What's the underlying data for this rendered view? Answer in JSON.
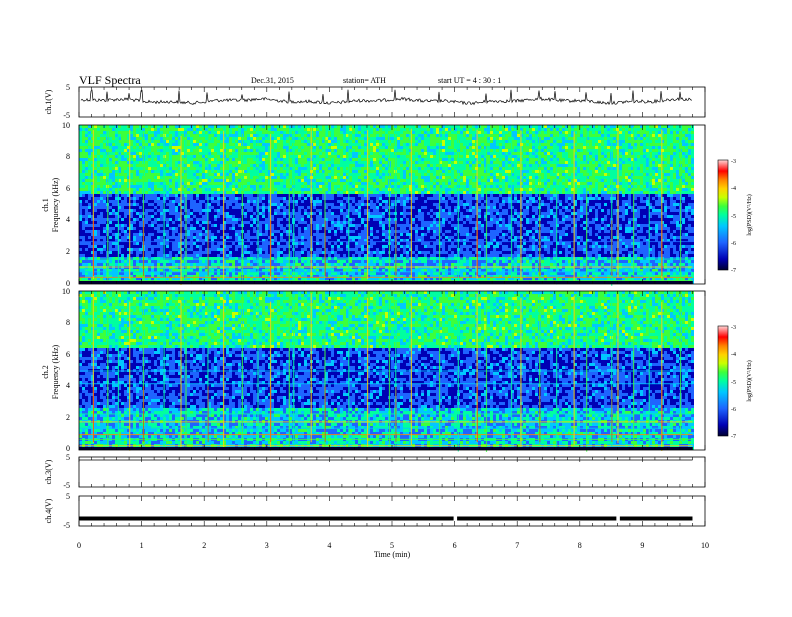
{
  "header": {
    "title": "VLF  Spectra",
    "date": "Dec.31, 2015",
    "station": "station= ATH",
    "start": "start  UT  =   4  : 30 : 1"
  },
  "chart_data": [
    {
      "type": "line",
      "panel": "ch1-waveform",
      "ylabel": "ch.1(V)",
      "ylim": [
        -5,
        5
      ],
      "yticks": [
        "5",
        "-5"
      ],
      "xlim": [
        0,
        10
      ],
      "trace_end_min": 9.8,
      "baseline_v": 0,
      "spike_times_min": [
        0.2,
        0.45,
        0.8,
        1.0,
        1.6,
        2.05,
        2.6,
        3.35,
        3.9,
        4.3,
        5.05,
        5.75,
        6.5,
        6.9,
        7.35,
        7.6,
        8.1,
        8.5,
        8.85,
        9.3,
        9.6
      ]
    },
    {
      "type": "heatmap",
      "panel": "ch1-spectrogram",
      "ylabel": "ch.1\nFrequency  (kHz)",
      "ylim": [
        0,
        10
      ],
      "yticks": [
        "0",
        "2",
        "4",
        "6",
        "8",
        "10"
      ],
      "xlim": [
        0,
        10
      ],
      "data_end_min": 9.8,
      "quiet_band_khz": [
        1.8,
        5.8
      ],
      "colorbar": {
        "label": "log(PSD)(V²/Hz)",
        "range": [
          -7,
          -3
        ],
        "ticks": [
          "-3",
          "-4",
          "-5",
          "-6",
          "-7"
        ]
      }
    },
    {
      "type": "heatmap",
      "panel": "ch2-spectrogram",
      "ylabel": "ch.2\nFrequency  (kHz)",
      "ylim": [
        0,
        10
      ],
      "yticks": [
        "0",
        "2",
        "4",
        "6",
        "8",
        "10"
      ],
      "xlim": [
        0,
        10
      ],
      "data_end_min": 9.8,
      "quiet_band_khz": [
        2.8,
        6.5
      ],
      "colorbar": {
        "label": "log(PSD)(V²/Hz)",
        "range": [
          -7,
          -3
        ],
        "ticks": [
          "-3",
          "-4",
          "-5",
          "-6",
          "-7"
        ]
      }
    },
    {
      "type": "line",
      "panel": "ch3-waveform",
      "ylabel": "ch.3(V)",
      "ylim": [
        -5,
        5
      ],
      "yticks": [
        "5",
        "-5"
      ],
      "xlim": [
        0,
        10
      ],
      "trace_end_min": 9.8,
      "level_v": 0
    },
    {
      "type": "line",
      "panel": "ch4-waveform",
      "ylabel": "ch.4(V)",
      "ylim": [
        -5,
        5
      ],
      "yticks": [
        "5",
        "-5"
      ],
      "xlim": [
        0,
        10
      ],
      "trace_end_min": 9.8,
      "level_v": -2.5,
      "gap_times_min": [
        6.0,
        8.6
      ],
      "xlabel": "Time  (min)",
      "xticks": [
        "0",
        "1",
        "2",
        "3",
        "4",
        "5",
        "6",
        "7",
        "8",
        "9",
        "10"
      ]
    }
  ],
  "colors": {
    "spectrum_scale": [
      "#000030",
      "#0000b4",
      "#1e64ff",
      "#00c8ff",
      "#00ffa0",
      "#3cff3c",
      "#c8ff00",
      "#ffd200",
      "#ff8200",
      "#ff0000",
      "#ff9696",
      "#ffffff"
    ],
    "trace": "#000000"
  }
}
